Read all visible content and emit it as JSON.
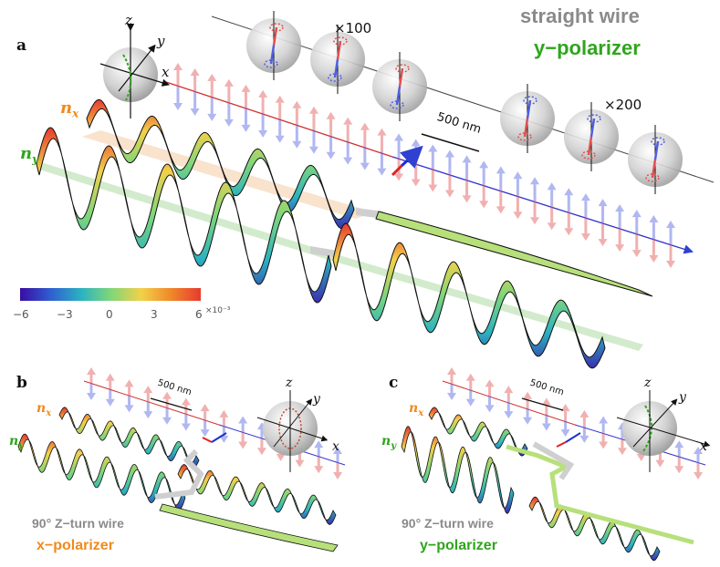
{
  "panels": {
    "a": {
      "letter": "a",
      "title_line1": "straight wire",
      "title_line2": "y−polarizer",
      "nx_label": "n",
      "nx_sub": "x",
      "ny_label": "n",
      "ny_sub": "y",
      "scale_bar": "500 nm",
      "mag1": "×100",
      "mag2": "×200",
      "axis_x": "x",
      "axis_y": "y",
      "axis_z": "z"
    },
    "b": {
      "letter": "b",
      "title_line1": "90° Z−turn wire",
      "title_line2": "x−polarizer",
      "nx_label": "n",
      "nx_sub": "x",
      "ny_label": "n",
      "ny_sub": "y",
      "scale_bar": "500 nm",
      "axis_x": "x",
      "axis_y": "y",
      "axis_z": "z"
    },
    "c": {
      "letter": "c",
      "title_line1": "90° Z−turn wire",
      "title_line2": "y−polarizer",
      "nx_label": "n",
      "nx_sub": "x",
      "ny_label": "n",
      "ny_sub": "y",
      "scale_bar": "500 nm",
      "axis_x": "x",
      "axis_y": "y",
      "axis_z": "z"
    }
  },
  "colorbar": {
    "ticks": [
      "−6",
      "−3",
      "0",
      "3",
      "6"
    ],
    "exponent": "×10⁻³",
    "colors": [
      "#3a0ca3",
      "#2f5fd0",
      "#2bb3c0",
      "#7fd67a",
      "#f2d14a",
      "#f08a2a",
      "#e63b2e"
    ]
  },
  "colors": {
    "spin_red": "#e05050",
    "spin_blue": "#5060e0",
    "nx_orange": "#f08a1c",
    "ny_green": "#2fa51c",
    "title_gray": "#8a8a8a"
  }
}
